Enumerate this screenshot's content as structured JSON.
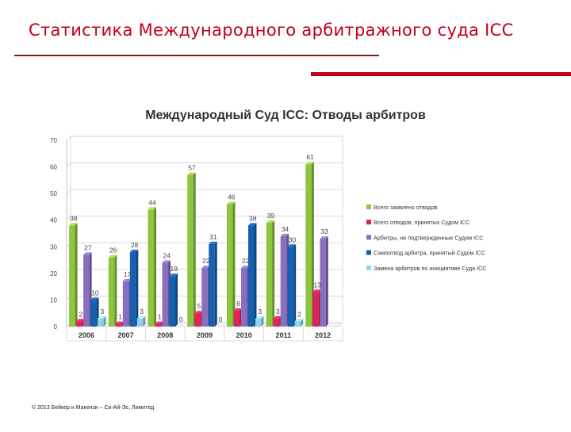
{
  "slide": {
    "title": "Статистика Международного арбитражного суда ICC",
    "footer": "© 2013 Бейкер и Макензи – Си-Ай-Эс, Лимитед"
  },
  "colors": {
    "series": [
      "#8dc53e",
      "#e0215a",
      "#8a6fbf",
      "#1560b0",
      "#8fd4ec"
    ],
    "title_red": "#c0001a"
  },
  "chart_data": {
    "type": "bar",
    "title": "Международный Суд ICC: Отводы арбитров",
    "categories": [
      "2006",
      "2007",
      "2008",
      "2009",
      "2010",
      "2011",
      "2012"
    ],
    "ylim": [
      0,
      70
    ],
    "yticks": [
      0,
      10,
      20,
      30,
      40,
      50,
      60,
      70
    ],
    "grid": true,
    "legend_position": "right",
    "series": [
      {
        "name": "Всего заявлено отводов",
        "values": [
          38,
          26,
          44,
          57,
          46,
          39,
          61
        ]
      },
      {
        "name": "Всего отводов, принятых Судом ICC",
        "values": [
          2,
          1,
          1,
          5,
          6,
          3,
          13
        ]
      },
      {
        "name": "Арбитры, не подтвержденные Судом ICC",
        "values": [
          27,
          17,
          24,
          22,
          22,
          34,
          33
        ]
      },
      {
        "name": "Самоотвод арбитра, принятый Судом ICC",
        "values": [
          10,
          28,
          19,
          31,
          38,
          30,
          null
        ]
      },
      {
        "name": "Замена арбитров по инициативе Суда ICC",
        "values": [
          3,
          3,
          0,
          0,
          3,
          2,
          null
        ]
      }
    ],
    "data_labels": [
      [
        "38",
        "2",
        "27",
        "10",
        "3"
      ],
      [
        "26",
        "1",
        "17",
        "28",
        "3"
      ],
      [
        "44",
        "1",
        "24",
        "19",
        "0"
      ],
      [
        "57",
        "5",
        "22",
        "31",
        "0"
      ],
      [
        "46",
        "6",
        "22",
        "38",
        "3"
      ],
      [
        "39",
        "3",
        "34",
        "30",
        "2"
      ],
      [
        "61",
        "13",
        "33",
        "",
        ""
      ]
    ]
  }
}
